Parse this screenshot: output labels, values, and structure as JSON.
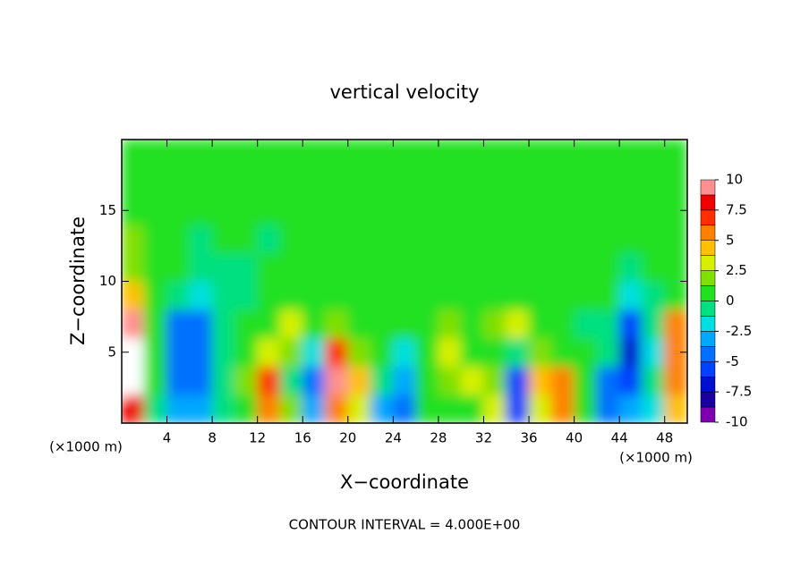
{
  "chart_data": {
    "type": "contourf",
    "title": "vertical velocity",
    "xlabel": "X−coordinate",
    "ylabel": "Z−coordinate",
    "x_unit": "(×1000 m)",
    "x_unit_right": "(×1000 m)",
    "footnote": "CONTOUR INTERVAL = 4.000E+00",
    "x": [
      1,
      3,
      5,
      7,
      9,
      11,
      13,
      15,
      17,
      19,
      21,
      23,
      25,
      27,
      29,
      31,
      33,
      35,
      37,
      39,
      41,
      43,
      45,
      47,
      49
    ],
    "y": [
      1,
      3,
      5,
      7,
      9,
      11,
      13,
      15,
      17,
      19
    ],
    "z": [
      [
        8,
        -1,
        -3,
        -3,
        -1,
        1,
        5,
        2,
        -3,
        6,
        3,
        -3,
        -4,
        0,
        1,
        1,
        3,
        -6,
        3,
        5,
        0,
        -4,
        -3,
        -2,
        4
      ],
      [
        12,
        0,
        -5,
        -4,
        -1,
        2,
        7,
        -1,
        -5,
        10,
        4,
        -1,
        -3,
        1,
        2,
        3,
        2,
        -6,
        4,
        5,
        0,
        -4,
        -6,
        -1,
        6
      ],
      [
        12,
        0,
        -5,
        -5,
        -1,
        1,
        3,
        2,
        -2,
        7,
        2,
        0,
        -2,
        1,
        3,
        1,
        1,
        -1,
        2,
        1,
        0,
        -1,
        -7,
        -2,
        6
      ],
      [
        9,
        1,
        -4,
        -4,
        -1,
        0,
        1,
        3,
        0,
        2,
        1,
        1,
        0,
        1,
        2,
        0,
        2,
        3,
        1,
        0,
        -1,
        -1,
        -6,
        -1,
        5
      ],
      [
        4,
        1,
        -1,
        -2,
        -1,
        -1,
        0,
        0,
        0,
        1,
        1,
        0,
        1,
        0.5,
        1,
        0,
        0,
        1,
        0,
        0,
        0,
        0,
        -2,
        -1,
        1
      ],
      [
        2,
        1,
        0,
        -1,
        -1,
        -1,
        0,
        0,
        0,
        0,
        0,
        0,
        0,
        0,
        0,
        0,
        0,
        0.5,
        0,
        0,
        0,
        0,
        -1,
        0,
        0
      ],
      [
        1.5,
        1,
        0,
        -1,
        0,
        0,
        -0.5,
        0,
        0,
        0,
        0,
        0,
        0,
        0,
        0,
        0,
        0,
        0,
        0,
        0,
        0,
        0,
        0,
        0,
        0
      ],
      [
        1,
        0.5,
        0,
        0,
        0,
        0,
        0,
        0,
        0,
        0,
        0,
        0,
        0,
        0,
        0,
        0,
        0,
        0,
        0,
        0,
        0,
        0,
        0,
        0,
        0
      ],
      [
        0.5,
        0,
        0,
        0,
        0,
        0,
        0,
        0,
        0,
        0,
        0,
        0,
        0,
        0,
        0,
        0,
        0,
        0,
        0,
        0,
        0,
        0,
        0,
        0,
        0
      ],
      [
        0,
        0,
        0,
        0,
        0,
        0,
        0,
        0,
        0,
        0,
        0,
        0,
        0,
        0,
        0,
        0,
        0,
        0,
        0,
        0,
        0,
        0,
        0,
        0,
        0
      ]
    ],
    "xlim": [
      0,
      50
    ],
    "ylim": [
      0,
      20
    ],
    "xticks": [
      4,
      8,
      12,
      16,
      20,
      24,
      28,
      32,
      36,
      40,
      44,
      48
    ],
    "yticks": [
      5,
      10,
      15
    ],
    "zlim": [
      -10,
      10
    ],
    "zticks": [
      10,
      7.5,
      5,
      2.5,
      0,
      -2.5,
      -5,
      -7.5,
      -10
    ],
    "colors": [
      "#7d00b0",
      "#1a00a0",
      "#0010d0",
      "#0040ff",
      "#0070ff",
      "#00a8ff",
      "#00e0e0",
      "#00e080",
      "#20e020",
      "#80e000",
      "#d8f000",
      "#ffc000",
      "#ff8000",
      "#ff3000",
      "#f00000",
      "#ff9090"
    ],
    "over_color": "#ffffff"
  }
}
